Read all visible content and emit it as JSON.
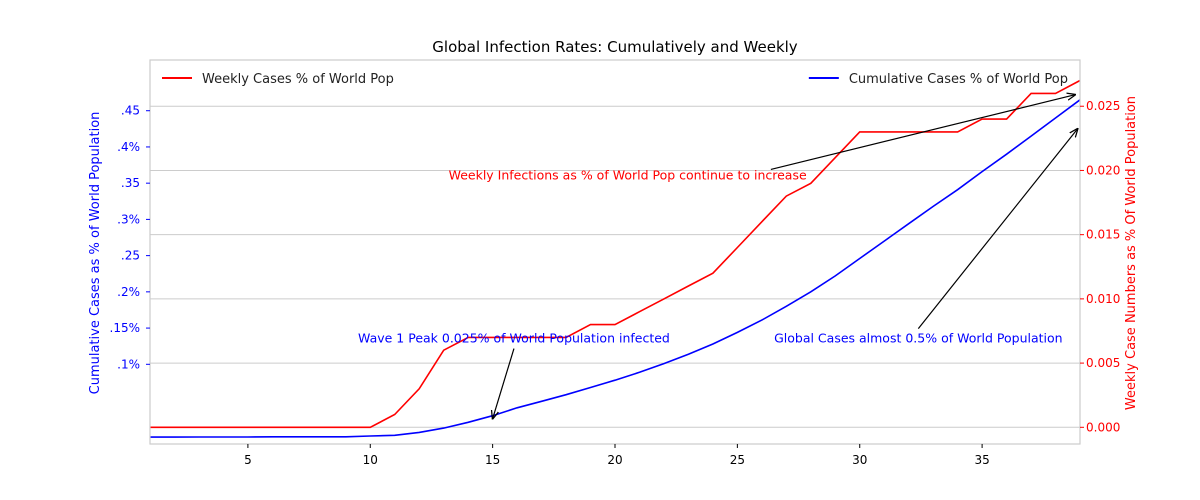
{
  "chart_data": {
    "type": "line",
    "title": "Global Infection Rates: Cumulatively and Weekly",
    "xlim": [
      1,
      39
    ],
    "x_ticks": [
      5,
      10,
      15,
      20,
      25,
      30,
      35
    ],
    "left_axis": {
      "label": "Cumulative Cases as % of World Population",
      "color": "#0000ff",
      "ylim": [
        -0.01,
        0.52
      ],
      "ticks": [
        {
          "value": 0.1,
          "label": ".1%"
        },
        {
          "value": 0.15,
          "label": ".15%"
        },
        {
          "value": 0.2,
          "label": ".2%"
        },
        {
          "value": 0.25,
          "label": ".25"
        },
        {
          "value": 0.3,
          "label": ".3%"
        },
        {
          "value": 0.35,
          "label": ".35"
        },
        {
          "value": 0.4,
          "label": ".4%"
        },
        {
          "value": 0.45,
          "label": ".45"
        }
      ]
    },
    "right_axis": {
      "label": "Weekly Case Numbers as % Of World Population",
      "color": "#ff0000",
      "ylim": [
        -0.0013,
        0.0286
      ],
      "ticks": [
        {
          "value": 0.0,
          "label": "0.000"
        },
        {
          "value": 0.005,
          "label": "0.005"
        },
        {
          "value": 0.01,
          "label": "0.010"
        },
        {
          "value": 0.015,
          "label": "0.015"
        },
        {
          "value": 0.02,
          "label": "0.020"
        },
        {
          "value": 0.025,
          "label": "0.025"
        }
      ]
    },
    "grid": true,
    "series": [
      {
        "name": "Cumulative Cases % of World Pop",
        "axis": "left",
        "color": "#0000ff",
        "x": [
          1,
          2,
          3,
          4,
          5,
          6,
          7,
          8,
          9,
          10,
          11,
          12,
          13,
          14,
          15,
          16,
          17,
          18,
          19,
          20,
          21,
          22,
          23,
          24,
          25,
          26,
          27,
          28,
          29,
          30,
          31,
          32,
          33,
          34,
          35,
          36,
          37,
          38,
          39
        ],
        "y": [
          -0.0005,
          -0.0005,
          -0.0004,
          -0.0004,
          -0.0003,
          0.0,
          0.0,
          0.0,
          0.0,
          0.001,
          0.002,
          0.006,
          0.012,
          0.02,
          0.029,
          0.04,
          0.049,
          0.058,
          0.068,
          0.078,
          0.089,
          0.101,
          0.114,
          0.128,
          0.144,
          0.161,
          0.18,
          0.2,
          0.222,
          0.246,
          0.27,
          0.294,
          0.318,
          0.341,
          0.366,
          0.39,
          0.415,
          0.44,
          0.465
        ]
      },
      {
        "name": "Weekly Cases % of World Pop",
        "axis": "right",
        "color": "#ff0000",
        "x": [
          1,
          2,
          3,
          4,
          5,
          6,
          7,
          8,
          9,
          10,
          11,
          12,
          13,
          14,
          15,
          16,
          17,
          18,
          19,
          20,
          21,
          22,
          23,
          24,
          25,
          26,
          27,
          28,
          29,
          30,
          31,
          32,
          33,
          34,
          35,
          36,
          37,
          38,
          39
        ],
        "y": [
          0,
          0,
          0,
          0,
          0,
          0,
          0,
          0,
          0,
          0,
          0.001,
          0.003,
          0.006,
          0.007,
          0.007,
          0.007,
          0.007,
          0.007,
          0.008,
          0.008,
          0.009,
          0.01,
          0.011,
          0.012,
          0.014,
          0.016,
          0.018,
          0.019,
          0.021,
          0.023,
          0.023,
          0.023,
          0.023,
          0.023,
          0.024,
          0.024,
          0.026,
          0.026,
          0.027
        ]
      }
    ],
    "legend": [
      {
        "label": "Weekly Cases % of World Pop",
        "color": "#ff0000",
        "position": "upper-left"
      },
      {
        "label": "Cumulative Cases % of World Pop",
        "color": "#0000ff",
        "position": "upper-right"
      }
    ],
    "annotations": [
      {
        "text": "Weekly Infections as % of World Pop continue to increase",
        "color": "#ff0000",
        "axis": "right",
        "text_at": [
          13.2,
          0.0193
        ],
        "arrow_to": [
          38.8,
          0.0259
        ]
      },
      {
        "text": "Wave 1 Peak 0.025% of World Population infected",
        "color": "#0000ff",
        "axis": "left",
        "text_at": [
          9.5,
          0.13
        ],
        "arrow_to": [
          15,
          0.025
        ]
      },
      {
        "text": "Global Cases almost 0.5% of World Population",
        "color": "#0000ff",
        "axis": "left",
        "text_at": [
          26.5,
          0.13
        ],
        "arrow_to": [
          38.9,
          0.425
        ]
      }
    ]
  }
}
